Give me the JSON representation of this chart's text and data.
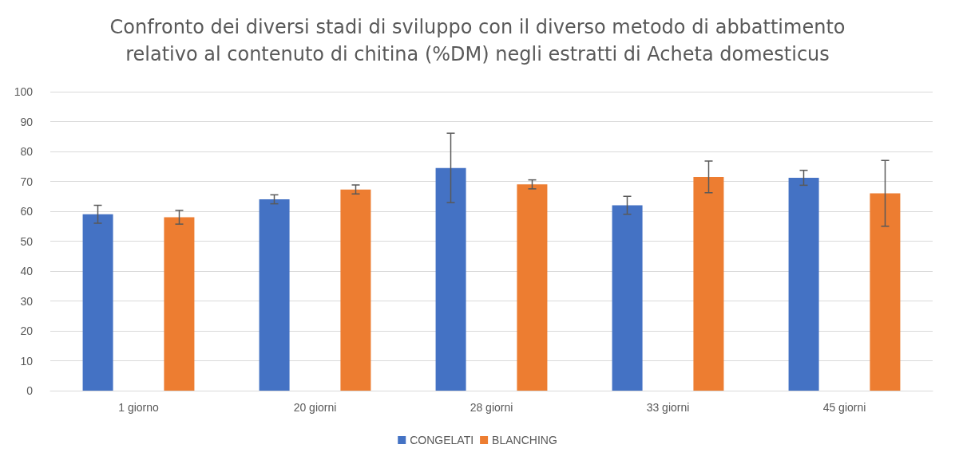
{
  "chart_data": {
    "type": "bar",
    "title": "Confronto dei diversi stadi di sviluppo con il diverso metodo di abbattimento\nrelativo al contenuto di chitina (%DM) negli estratti di Acheta domesticus",
    "categories": [
      "1 giorno",
      "20 giorni",
      "28 giorni",
      "33 giorni",
      "45 giorni"
    ],
    "series": [
      {
        "name": "CONGELATI",
        "color": "#4472c4",
        "values": [
          59,
          64,
          74.5,
          62,
          71.2
        ],
        "errors": [
          3,
          1.5,
          11.6,
          3,
          2.5
        ]
      },
      {
        "name": "BLANCHING",
        "color": "#ed7d31",
        "values": [
          58,
          67.3,
          69,
          71.5,
          66
        ],
        "errors": [
          2.3,
          1.5,
          1.5,
          5.3,
          11
        ]
      }
    ],
    "ylim": [
      0,
      100
    ],
    "yticks": [
      0,
      10,
      20,
      30,
      40,
      50,
      60,
      70,
      80,
      90,
      100
    ],
    "grid": true,
    "legend": "bottom"
  }
}
